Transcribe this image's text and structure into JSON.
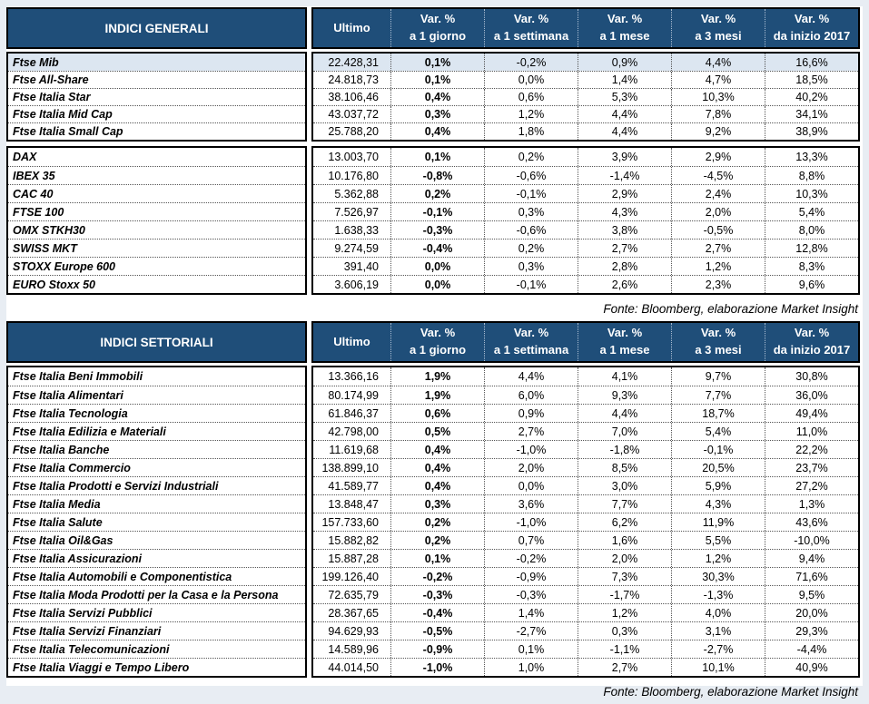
{
  "colors": {
    "header_bg": "#1F4E79",
    "highlight_row": "#DCE6F1"
  },
  "columns": {
    "ultimo": "Ultimo",
    "var_cols": [
      {
        "line1": "Var. %",
        "line2": "a 1 giorno"
      },
      {
        "line1": "Var. %",
        "line2": "a 1 settimana"
      },
      {
        "line1": "Var. %",
        "line2": "a 1 mese"
      },
      {
        "line1": "Var. %",
        "line2": "a 3 mesi"
      },
      {
        "line1": "Var. %",
        "line2": "da inizio 2017"
      }
    ]
  },
  "tables": [
    {
      "title": "INDICI GENERALI",
      "source": "Fonte: Bloomberg, elaborazione Market Insight",
      "groups": [
        {
          "rows": [
            {
              "name": "Ftse Mib",
              "ultimo": "22.428,31",
              "vars": [
                "0,1%",
                "-0,2%",
                "0,9%",
                "4,4%",
                "16,6%"
              ],
              "highlight": true
            },
            {
              "name": "Ftse All-Share",
              "ultimo": "24.818,73",
              "vars": [
                "0,1%",
                "0,0%",
                "1,4%",
                "4,7%",
                "18,5%"
              ]
            },
            {
              "name": "Ftse Italia Star",
              "ultimo": "38.106,46",
              "vars": [
                "0,4%",
                "0,6%",
                "5,3%",
                "10,3%",
                "40,2%"
              ]
            },
            {
              "name": "Ftse Italia Mid Cap",
              "ultimo": "43.037,72",
              "vars": [
                "0,3%",
                "1,2%",
                "4,4%",
                "7,8%",
                "34,1%"
              ]
            },
            {
              "name": "Ftse Italia Small Cap",
              "ultimo": "25.788,20",
              "vars": [
                "0,4%",
                "1,8%",
                "4,4%",
                "9,2%",
                "38,9%"
              ]
            }
          ]
        },
        {
          "rows": [
            {
              "name": "DAX",
              "ultimo": "13.003,70",
              "vars": [
                "0,1%",
                "0,2%",
                "3,9%",
                "2,9%",
                "13,3%"
              ]
            },
            {
              "name": "IBEX 35",
              "ultimo": "10.176,80",
              "vars": [
                "-0,8%",
                "-0,6%",
                "-1,4%",
                "-4,5%",
                "8,8%"
              ]
            },
            {
              "name": "CAC 40",
              "ultimo": "5.362,88",
              "vars": [
                "0,2%",
                "-0,1%",
                "2,9%",
                "2,4%",
                "10,3%"
              ]
            },
            {
              "name": "FTSE 100",
              "ultimo": "7.526,97",
              "vars": [
                "-0,1%",
                "0,3%",
                "4,3%",
                "2,0%",
                "5,4%"
              ]
            },
            {
              "name": "OMX STKH30",
              "ultimo": "1.638,33",
              "vars": [
                "-0,3%",
                "-0,6%",
                "3,8%",
                "-0,5%",
                "8,0%"
              ]
            },
            {
              "name": "SWISS MKT",
              "ultimo": "9.274,59",
              "vars": [
                "-0,4%",
                "0,2%",
                "2,7%",
                "2,7%",
                "12,8%"
              ]
            },
            {
              "name": "STOXX Europe 600",
              "ultimo": "391,40",
              "vars": [
                "0,0%",
                "0,3%",
                "2,8%",
                "1,2%",
                "8,3%"
              ]
            },
            {
              "name": "EURO Stoxx 50",
              "ultimo": "3.606,19",
              "vars": [
                "0,0%",
                "-0,1%",
                "2,6%",
                "2,3%",
                "9,6%"
              ]
            }
          ]
        }
      ]
    },
    {
      "title": "INDICI SETTORIALI",
      "source": "Fonte: Bloomberg, elaborazione Market Insight",
      "groups": [
        {
          "rows": [
            {
              "name": "Ftse Italia Beni Immobili",
              "ultimo": "13.366,16",
              "vars": [
                "1,9%",
                "4,4%",
                "4,1%",
                "9,7%",
                "30,8%"
              ]
            },
            {
              "name": "Ftse Italia Alimentari",
              "ultimo": "80.174,99",
              "vars": [
                "1,9%",
                "6,0%",
                "9,3%",
                "7,7%",
                "36,0%"
              ]
            },
            {
              "name": "Ftse Italia Tecnologia",
              "ultimo": "61.846,37",
              "vars": [
                "0,6%",
                "0,9%",
                "4,4%",
                "18,7%",
                "49,4%"
              ]
            },
            {
              "name": "Ftse Italia Edilizia e Materiali",
              "ultimo": "42.798,00",
              "vars": [
                "0,5%",
                "2,7%",
                "7,0%",
                "5,4%",
                "11,0%"
              ]
            },
            {
              "name": "Ftse Italia Banche",
              "ultimo": "11.619,68",
              "vars": [
                "0,4%",
                "-1,0%",
                "-1,8%",
                "-0,1%",
                "22,2%"
              ]
            },
            {
              "name": "Ftse Italia Commercio",
              "ultimo": "138.899,10",
              "vars": [
                "0,4%",
                "2,0%",
                "8,5%",
                "20,5%",
                "23,7%"
              ]
            },
            {
              "name": "Ftse Italia Prodotti e Servizi Industriali",
              "ultimo": "41.589,77",
              "vars": [
                "0,4%",
                "0,0%",
                "3,0%",
                "5,9%",
                "27,2%"
              ]
            },
            {
              "name": "Ftse Italia Media",
              "ultimo": "13.848,47",
              "vars": [
                "0,3%",
                "3,6%",
                "7,7%",
                "4,3%",
                "1,3%"
              ]
            },
            {
              "name": "Ftse Italia Salute",
              "ultimo": "157.733,60",
              "vars": [
                "0,2%",
                "-1,0%",
                "6,2%",
                "11,9%",
                "43,6%"
              ]
            },
            {
              "name": "Ftse Italia Oil&Gas",
              "ultimo": "15.882,82",
              "vars": [
                "0,2%",
                "0,7%",
                "1,6%",
                "5,5%",
                "-10,0%"
              ]
            },
            {
              "name": "Ftse Italia Assicurazioni",
              "ultimo": "15.887,28",
              "vars": [
                "0,1%",
                "-0,2%",
                "2,0%",
                "1,2%",
                "9,4%"
              ]
            },
            {
              "name": "Ftse Italia Automobili e Componentistica",
              "ultimo": "199.126,40",
              "vars": [
                "-0,2%",
                "-0,9%",
                "7,3%",
                "30,3%",
                "71,6%"
              ]
            },
            {
              "name": "Ftse Italia Moda Prodotti per la Casa e la Persona",
              "ultimo": "72.635,79",
              "vars": [
                "-0,3%",
                "-0,3%",
                "-1,7%",
                "-1,3%",
                "9,5%"
              ]
            },
            {
              "name": "Ftse Italia Servizi Pubblici",
              "ultimo": "28.367,65",
              "vars": [
                "-0,4%",
                "1,4%",
                "1,2%",
                "4,0%",
                "20,0%"
              ]
            },
            {
              "name": "Ftse Italia Servizi Finanziari",
              "ultimo": "94.629,93",
              "vars": [
                "-0,5%",
                "-2,7%",
                "0,3%",
                "3,1%",
                "29,3%"
              ]
            },
            {
              "name": "Ftse Italia Telecomunicazioni",
              "ultimo": "14.589,96",
              "vars": [
                "-0,9%",
                "0,1%",
                "-1,1%",
                "-2,7%",
                "-4,4%"
              ]
            },
            {
              "name": "Ftse Italia Viaggi e Tempo Libero",
              "ultimo": "44.014,50",
              "vars": [
                "-1,0%",
                "1,0%",
                "2,7%",
                "10,1%",
                "40,9%"
              ]
            }
          ]
        }
      ]
    }
  ]
}
